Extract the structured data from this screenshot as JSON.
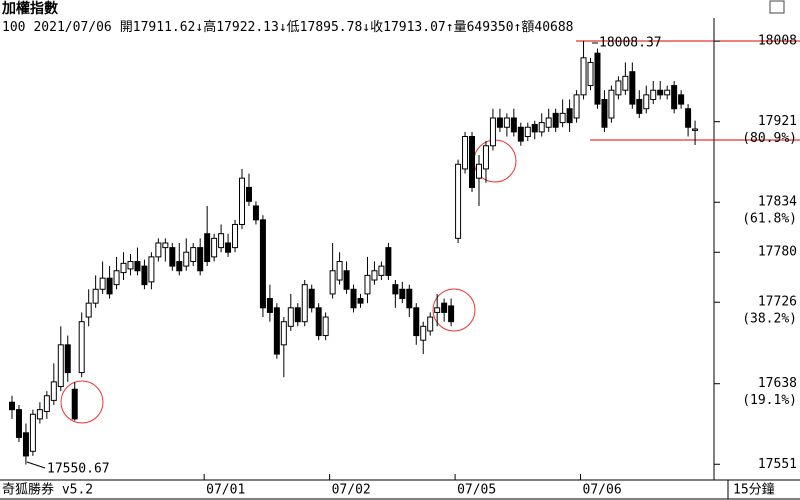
{
  "chart_data": {
    "type": "candlestick",
    "title": "加權指數",
    "info": [
      "100",
      "2021/07/06",
      "開17911.62↓",
      "高17922.13↓",
      "低17895.78↓",
      "收17913.07↑",
      "量649350↑",
      "額40688"
    ],
    "footer_left": "奇狐勝券 v5.2",
    "footer_right": "15分鐘",
    "high_label": "18008.37",
    "low_label": "17550.67",
    "categories": [
      null,
      null,
      null,
      null,
      null,
      null,
      null,
      null,
      null,
      null,
      null,
      null,
      null,
      null,
      null,
      null,
      null,
      null,
      null,
      null,
      null,
      null,
      null,
      null,
      null,
      null,
      null,
      null,
      "07/01",
      null,
      null,
      null,
      null,
      null,
      null,
      null,
      null,
      null,
      null,
      null,
      null,
      null,
      null,
      null,
      null,
      null,
      "07/02",
      null,
      null,
      null,
      null,
      null,
      null,
      null,
      null,
      null,
      null,
      null,
      null,
      null,
      null,
      null,
      null,
      null,
      "07/05",
      null,
      null,
      null,
      null,
      null,
      null,
      null,
      null,
      null,
      null,
      null,
      null,
      null,
      null,
      null,
      null,
      null,
      "07/06",
      null,
      null,
      null,
      null,
      null,
      null,
      null,
      null,
      null,
      null,
      null,
      null,
      null,
      null,
      null,
      null
    ],
    "open": [
      17618,
      17610,
      17585,
      17565,
      17600,
      17608,
      17620,
      17635,
      17680,
      17632,
      17650,
      17710,
      17725,
      17740,
      17752,
      17745,
      17758,
      17762,
      17770,
      17765,
      17748,
      17775,
      17785,
      17785,
      17770,
      17765,
      17770,
      17785,
      17800,
      17775,
      17785,
      17790,
      17785,
      17810,
      17850,
      17830,
      17815,
      17730,
      17720,
      17680,
      17700,
      17720,
      17705,
      17740,
      17720,
      17690,
      17735,
      17750,
      17760,
      17740,
      17730,
      17735,
      17750,
      17755,
      17785,
      17745,
      17740,
      17740,
      17720,
      17685,
      17695,
      17715,
      17725,
      17722,
      17795,
      17870,
      17905,
      17860,
      17870,
      17895,
      17925,
      17915,
      17925,
      17915,
      17905,
      17918,
      17910,
      17915,
      17930,
      17920,
      17935,
      17925,
      17950,
      17960,
      17995,
      17945,
      17925,
      17950,
      17955,
      17975,
      17945,
      17935,
      17945,
      17955,
      17950,
      17960,
      17950,
      17935,
      17911.62
    ],
    "high": [
      17625,
      17615,
      17595,
      17610,
      17618,
      17630,
      17660,
      17700,
      17690,
      17640,
      17715,
      17740,
      17755,
      17770,
      17765,
      17775,
      17780,
      17778,
      17785,
      17772,
      17780,
      17795,
      17795,
      17790,
      17790,
      17795,
      17790,
      17795,
      17830,
      17800,
      17810,
      17800,
      17815,
      17870,
      17865,
      17835,
      17820,
      17745,
      17725,
      17710,
      17735,
      17725,
      17750,
      17745,
      17725,
      17715,
      17790,
      17780,
      17770,
      17745,
      17735,
      17775,
      17770,
      17770,
      17790,
      17750,
      17748,
      17745,
      17725,
      17705,
      17715,
      17735,
      17730,
      17730,
      17880,
      17910,
      17910,
      17885,
      17900,
      17935,
      17935,
      17930,
      17935,
      17920,
      17920,
      17922,
      17930,
      17935,
      17935,
      17945,
      17945,
      17955,
      18008.37,
      17990,
      18000,
      17955,
      17960,
      17970,
      17985,
      17985,
      17955,
      17960,
      17965,
      17965,
      17960,
      17965,
      17955,
      17940,
      17922.13
    ],
    "low": [
      17600,
      17575,
      17550.67,
      17560,
      17595,
      17600,
      17615,
      17630,
      17640,
      17598,
      17645,
      17700,
      17720,
      17735,
      17730,
      17740,
      17750,
      17755,
      17755,
      17740,
      17740,
      17770,
      17770,
      17760,
      17755,
      17760,
      17765,
      17755,
      17765,
      17770,
      17780,
      17775,
      17780,
      17805,
      17830,
      17810,
      17710,
      17705,
      17665,
      17645,
      17695,
      17700,
      17700,
      17715,
      17685,
      17685,
      17730,
      17745,
      17735,
      17715,
      17720,
      17725,
      17745,
      17750,
      17750,
      17720,
      17725,
      17710,
      17680,
      17670,
      17690,
      17700,
      17705,
      17700,
      17790,
      17865,
      17845,
      17830,
      17855,
      17890,
      17910,
      17905,
      17905,
      17895,
      17900,
      17902,
      17905,
      17910,
      17910,
      17915,
      17910,
      17920,
      17945,
      17955,
      17935,
      17910,
      17920,
      17945,
      17950,
      17935,
      17925,
      17930,
      17940,
      17945,
      17945,
      17930,
      17935,
      17905,
      17895.78
    ],
    "close": [
      17610,
      17580,
      17560,
      17605,
      17610,
      17625,
      17640,
      17680,
      17650,
      17600,
      17705,
      17725,
      17740,
      17752,
      17735,
      17760,
      17768,
      17770,
      17760,
      17745,
      17775,
      17790,
      17790,
      17765,
      17760,
      17780,
      17785,
      17760,
      17770,
      17795,
      17800,
      17780,
      17810,
      17860,
      17835,
      17815,
      17720,
      17715,
      17670,
      17705,
      17720,
      17705,
      17745,
      17720,
      17690,
      17710,
      17760,
      17770,
      17740,
      17720,
      17725,
      17755,
      17760,
      17765,
      17755,
      17735,
      17730,
      17720,
      17690,
      17700,
      17710,
      17720,
      17715,
      17705,
      17875,
      17905,
      17850,
      17875,
      17895,
      17925,
      17915,
      17925,
      17910,
      17900,
      17915,
      17910,
      17920,
      17925,
      17915,
      17930,
      17920,
      17950,
      17990,
      17985,
      17940,
      17915,
      17955,
      17965,
      17970,
      17940,
      17930,
      17950,
      17955,
      17950,
      17955,
      17935,
      17940,
      17915,
      17913.07
    ],
    "ylim": [
      17534,
      18033
    ],
    "yticks": [
      17551,
      17638,
      17726,
      17780,
      17834,
      17921,
      18008
    ],
    "fib_labels": [
      {
        "value": 17638,
        "label": "(19.1%)"
      },
      {
        "value": 17726,
        "label": "(38.2%)"
      },
      {
        "value": 17834,
        "label": "(61.8%)"
      },
      {
        "value": 17921,
        "label": "(80.9%)"
      }
    ],
    "up_color": "#ffffff",
    "down_color": "#000000"
  }
}
